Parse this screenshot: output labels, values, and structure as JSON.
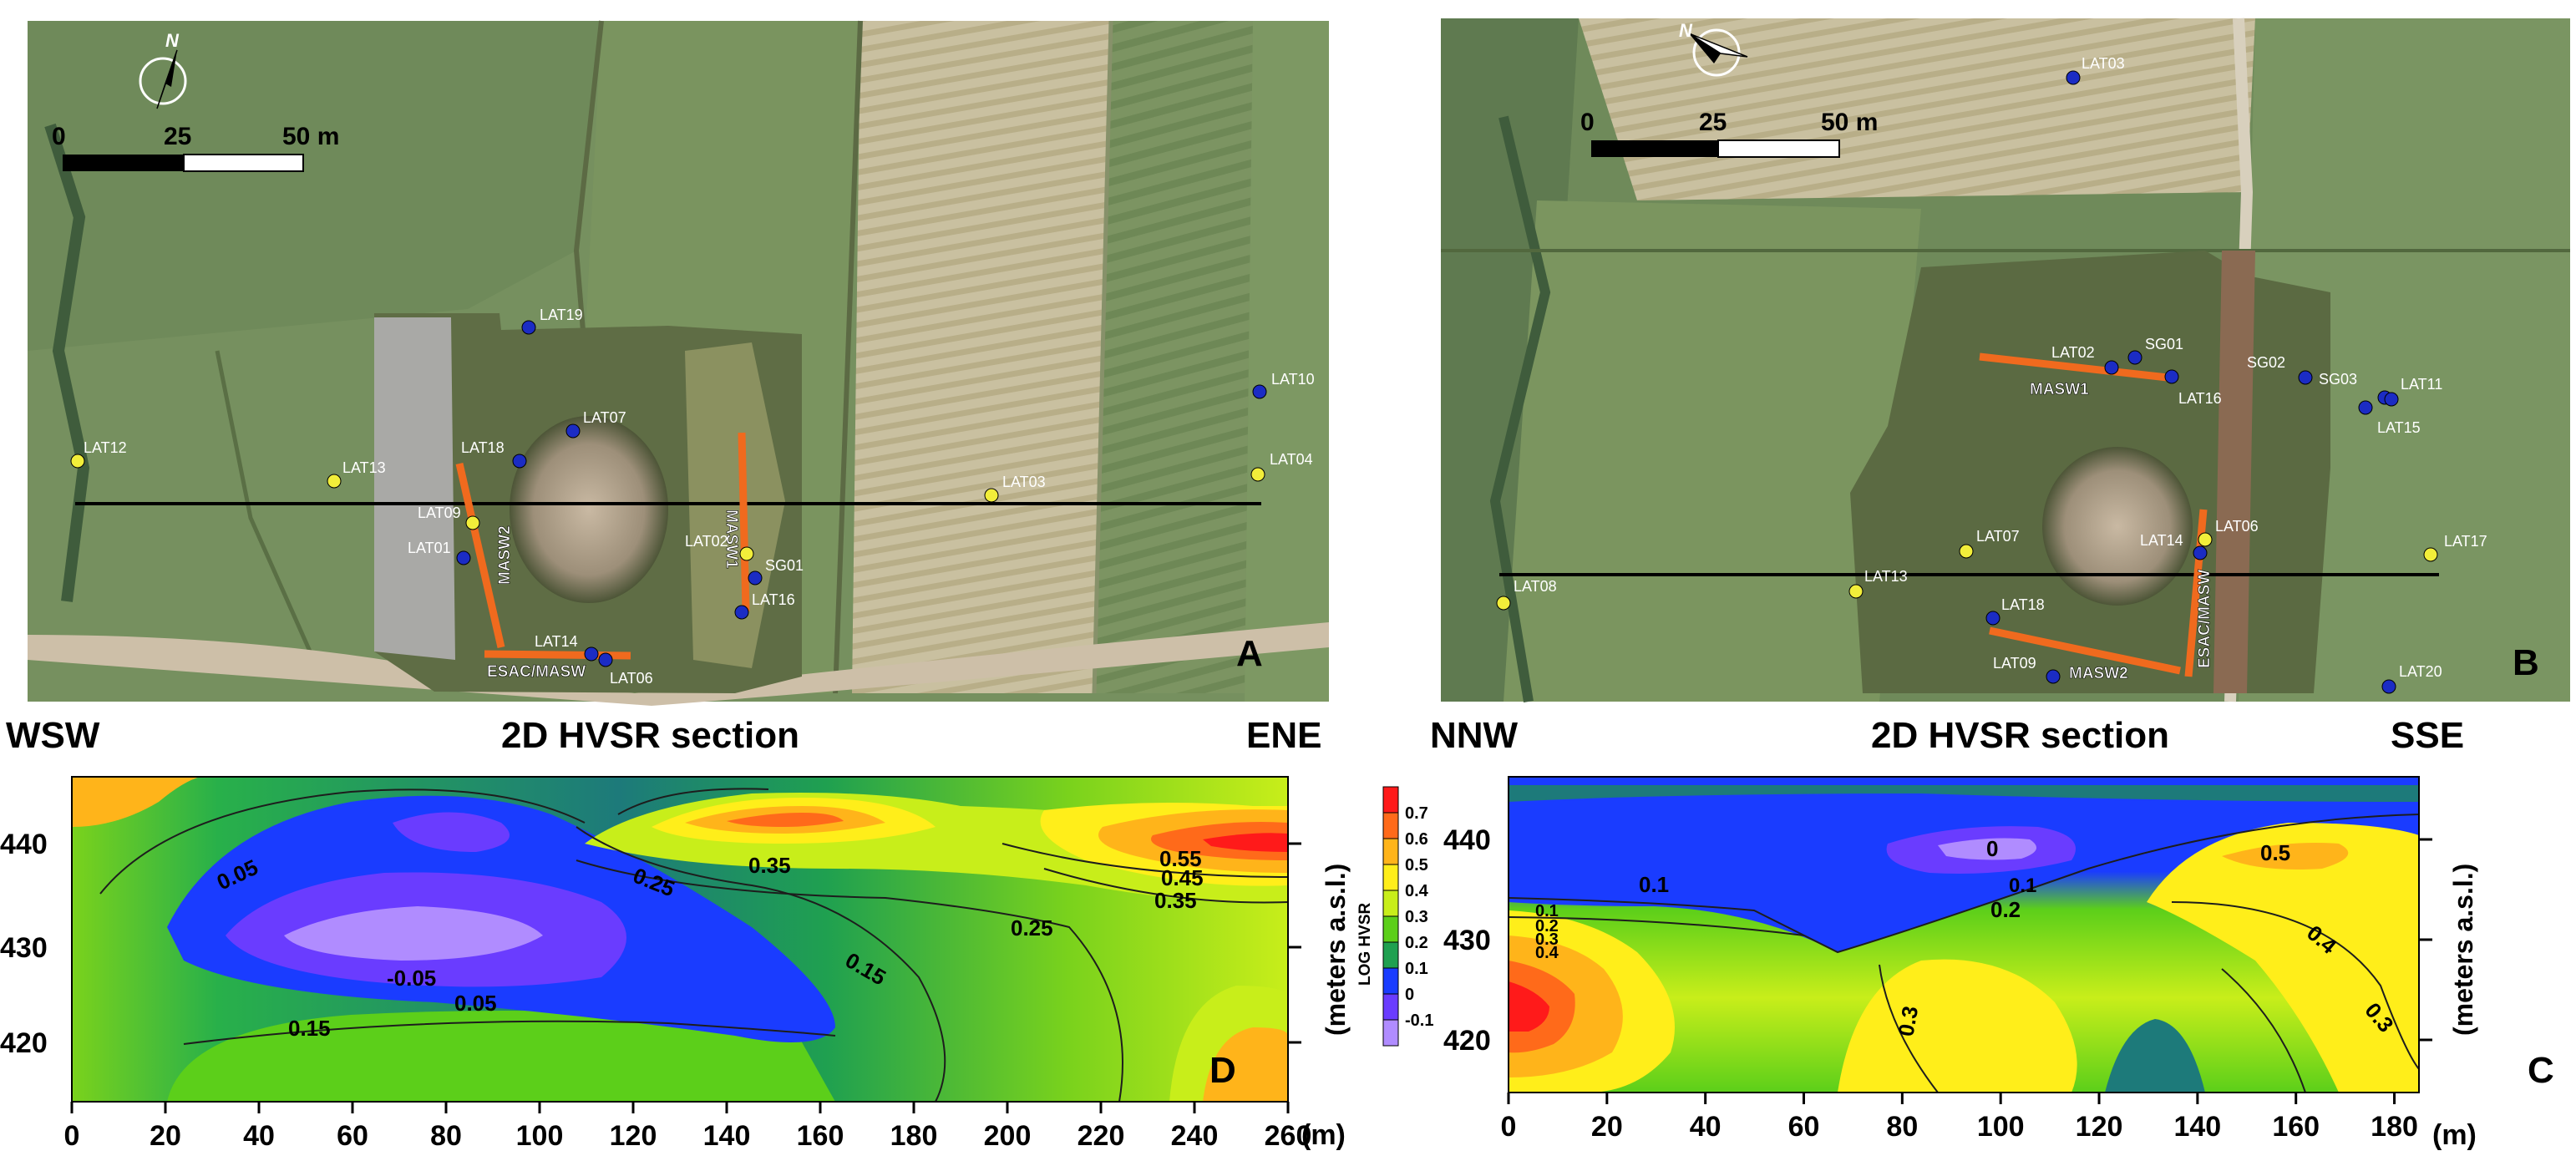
{
  "panel_a": {
    "letter": "A",
    "scale_ticks": [
      "0",
      "25",
      "50 m"
    ],
    "north": "N",
    "profiles": [
      "MASW2",
      "MASW1",
      "ESAC/MASW"
    ],
    "stations": [
      {
        "label": "LAT19",
        "type": "blue"
      },
      {
        "label": "LAT07",
        "type": "blue"
      },
      {
        "label": "LAT18",
        "type": "blue"
      },
      {
        "label": "LAT13",
        "type": "yellow"
      },
      {
        "label": "LAT12",
        "type": "yellow"
      },
      {
        "label": "LAT09",
        "type": "yellow"
      },
      {
        "label": "LAT01",
        "type": "blue"
      },
      {
        "label": "LAT02",
        "type": "yellow"
      },
      {
        "label": "SG01",
        "type": "blue"
      },
      {
        "label": "LAT16",
        "type": "blue"
      },
      {
        "label": "LAT14",
        "type": "blue"
      },
      {
        "label": "LAT06",
        "type": "blue"
      },
      {
        "label": "LAT03",
        "type": "yellow"
      },
      {
        "label": "LAT10",
        "type": "blue"
      },
      {
        "label": "LAT04",
        "type": "yellow"
      }
    ]
  },
  "panel_b": {
    "letter": "B",
    "scale_ticks": [
      "0",
      "25",
      "50 m"
    ],
    "north": "N",
    "profiles": [
      "MASW1",
      "MASW2",
      "ESAC/MASW"
    ],
    "stations": [
      {
        "label": "LAT03",
        "type": "blue"
      },
      {
        "label": "LAT02",
        "type": "blue"
      },
      {
        "label": "SG01",
        "type": "blue"
      },
      {
        "label": "LAT16",
        "type": "blue"
      },
      {
        "label": "SG02",
        "type": "blue"
      },
      {
        "label": "SG03",
        "type": "blue"
      },
      {
        "label": "LAT11",
        "type": "blue"
      },
      {
        "label": "LAT15",
        "type": "blue"
      },
      {
        "label": "LAT07",
        "type": "yellow"
      },
      {
        "label": "LAT14",
        "type": "blue"
      },
      {
        "label": "LAT06",
        "type": "yellow"
      },
      {
        "label": "LAT17",
        "type": "yellow"
      },
      {
        "label": "LAT08",
        "type": "yellow"
      },
      {
        "label": "LAT13",
        "type": "yellow"
      },
      {
        "label": "LAT18",
        "type": "blue"
      },
      {
        "label": "LAT09",
        "type": "blue"
      },
      {
        "label": "LAT20",
        "type": "blue"
      }
    ]
  },
  "panel_d": {
    "letter": "D",
    "title": "2D HVSR section",
    "left_dir": "WSW",
    "right_dir": "ENE",
    "x_ticks": [
      "0",
      "20",
      "40",
      "60",
      "80",
      "100",
      "120",
      "140",
      "160",
      "180",
      "200",
      "220",
      "240",
      "260"
    ],
    "x_unit": "(m)",
    "y_ticks": [
      "440",
      "430",
      "420"
    ],
    "y_label": "(meters a.s.l.)",
    "contour_labels": [
      "0.05",
      "-0.05",
      "0.05",
      "0.15",
      "0.15",
      "0.25",
      "0.35",
      "0.25",
      "0.35",
      "0.45",
      "0.55"
    ]
  },
  "panel_c": {
    "letter": "C",
    "title": "2D HVSR section",
    "left_dir": "NNW",
    "right_dir": "SSE",
    "x_ticks": [
      "0",
      "20",
      "40",
      "60",
      "80",
      "100",
      "120",
      "140",
      "160",
      "180"
    ],
    "x_unit": "(m)",
    "y_ticks": [
      "440",
      "430",
      "420"
    ],
    "y_label": "(meters a.s.l.)",
    "contour_labels": [
      "0.1",
      "0",
      "0.1",
      "0.2",
      "0.1",
      "0.2",
      "0.3",
      "0.4",
      "0.3",
      "0.5",
      "0.4",
      "0.3"
    ]
  },
  "colorbar": {
    "title": "LOG HVSR",
    "ticks": [
      "0.7",
      "0.6",
      "0.5",
      "0.4",
      "0.3",
      "0.2",
      "0.1",
      "0",
      "-0.1"
    ],
    "colors": [
      "#ff1a1a",
      "#ff6a1a",
      "#ffb41a",
      "#ffee1a",
      "#c8ee1a",
      "#5ccf1a",
      "#1fa050",
      "#1a3cff",
      "#6a3cff",
      "#b08cff"
    ]
  }
}
